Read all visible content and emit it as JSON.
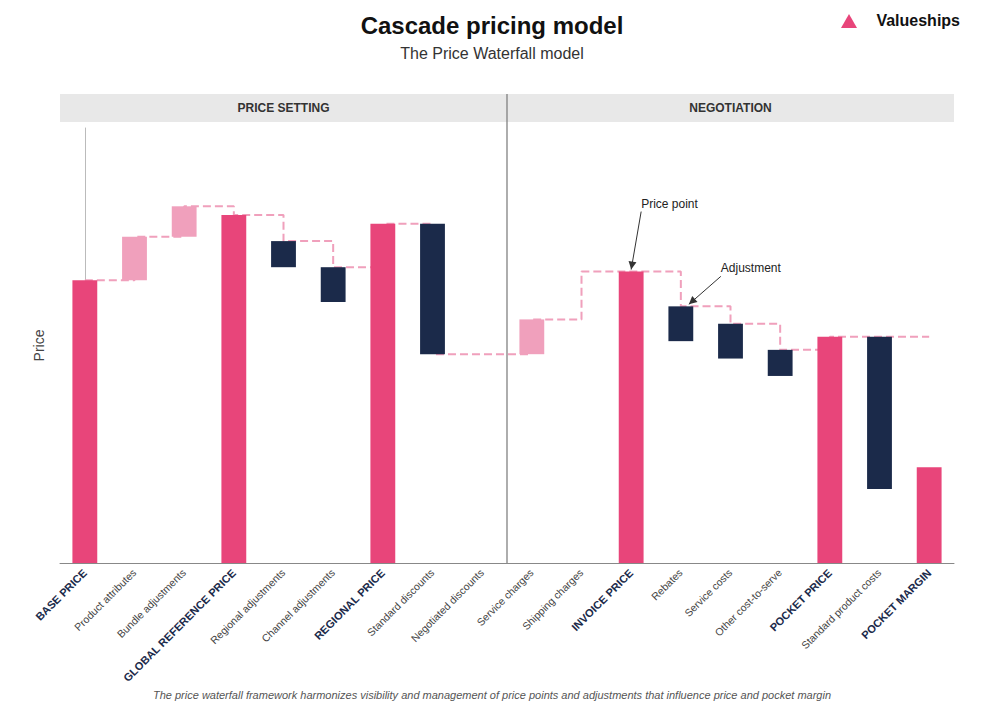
{
  "chart_data": {
    "type": "bar",
    "title": "Cascade pricing model",
    "subtitle": "The Price Waterfall model",
    "footer": "The price waterfall framework harmonizes visibility and management of price points and adjustments that influence price and pocket margin",
    "logo": "Valueships",
    "ylabel": "Price",
    "categories": [
      "BASE PRICE",
      "Product attributes",
      "Bundle adjustments",
      "GLOBAL REFERENCE PRICE",
      "Regional adjustments",
      "Channel adjustments",
      "REGIONAL PRICE",
      "Standard discounts",
      "Negotiated discounts",
      "Service charges",
      "Shipping charges",
      "INVOICE PRICE",
      "Rebates",
      "Service costs",
      "Other cost-to-serve",
      "POCKET PRICE",
      "Standard product costs",
      "POCKET MARGIN"
    ],
    "values": [
      65,
      10,
      7,
      80,
      6,
      8,
      78,
      30,
      null,
      8,
      null,
      67,
      8,
      8,
      6,
      52,
      35,
      22
    ],
    "bottoms": [
      0,
      65,
      75,
      0,
      68,
      60,
      0,
      48,
      null,
      48,
      null,
      0,
      51,
      47,
      43,
      0,
      17,
      0
    ],
    "colors": [
      "#E8457A",
      "#F0A0BC",
      "#F0A0BC",
      "#E8457A",
      "#1B2A4A",
      "#1B2A4A",
      "#E8457A",
      "#1B2A4A",
      null,
      "#F0A0BC",
      null,
      "#E8457A",
      "#1B2A4A",
      "#1B2A4A",
      "#1B2A4A",
      "#E8457A",
      "#1B2A4A",
      "#E8457A"
    ],
    "connector_levels": [
      65,
      75,
      82,
      80,
      74,
      68,
      78,
      48,
      48,
      56,
      67,
      67,
      59,
      55,
      49,
      52,
      52
    ],
    "connector_color": "#F0A0BC",
    "line_style": "dashed",
    "sections": [
      {
        "label": "PRICE SETTING",
        "start": "BASE PRICE",
        "end": "Negotiated discounts"
      },
      {
        "label": "NEGOTIATION",
        "start": "Service charges",
        "end": "POCKET MARGIN"
      }
    ],
    "annotations": [
      {
        "text": "Price point",
        "target": "INVOICE PRICE"
      },
      {
        "text": "Adjustment",
        "target": "Rebates"
      }
    ],
    "ylim": [
      0,
      100
    ],
    "tick_labels": "x",
    "grid": false
  }
}
